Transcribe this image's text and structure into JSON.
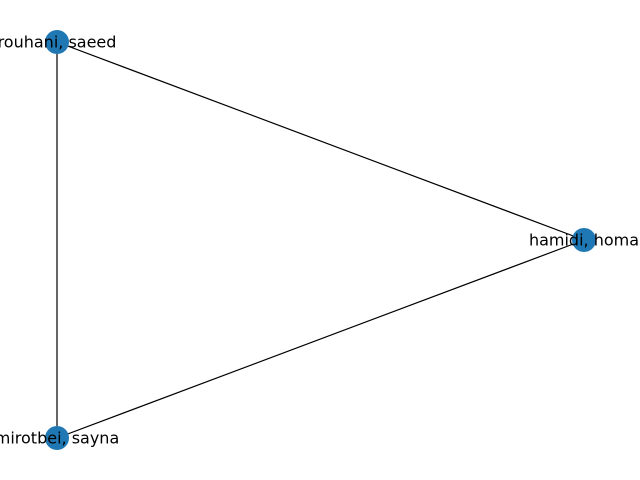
{
  "graph": {
    "node_color": "#1f77b4",
    "edge_color": "#000000",
    "nodes": [
      {
        "id": "rouhani",
        "label": "rouhani, saeed"
      },
      {
        "id": "hamidi",
        "label": "hamidi, homa"
      },
      {
        "id": "mirotbei",
        "label": "mirotbei, sayna"
      }
    ],
    "edges": [
      {
        "source": "rouhani",
        "target": "hamidi"
      },
      {
        "source": "rouhani",
        "target": "mirotbei"
      },
      {
        "source": "mirotbei",
        "target": "hamidi"
      }
    ]
  }
}
